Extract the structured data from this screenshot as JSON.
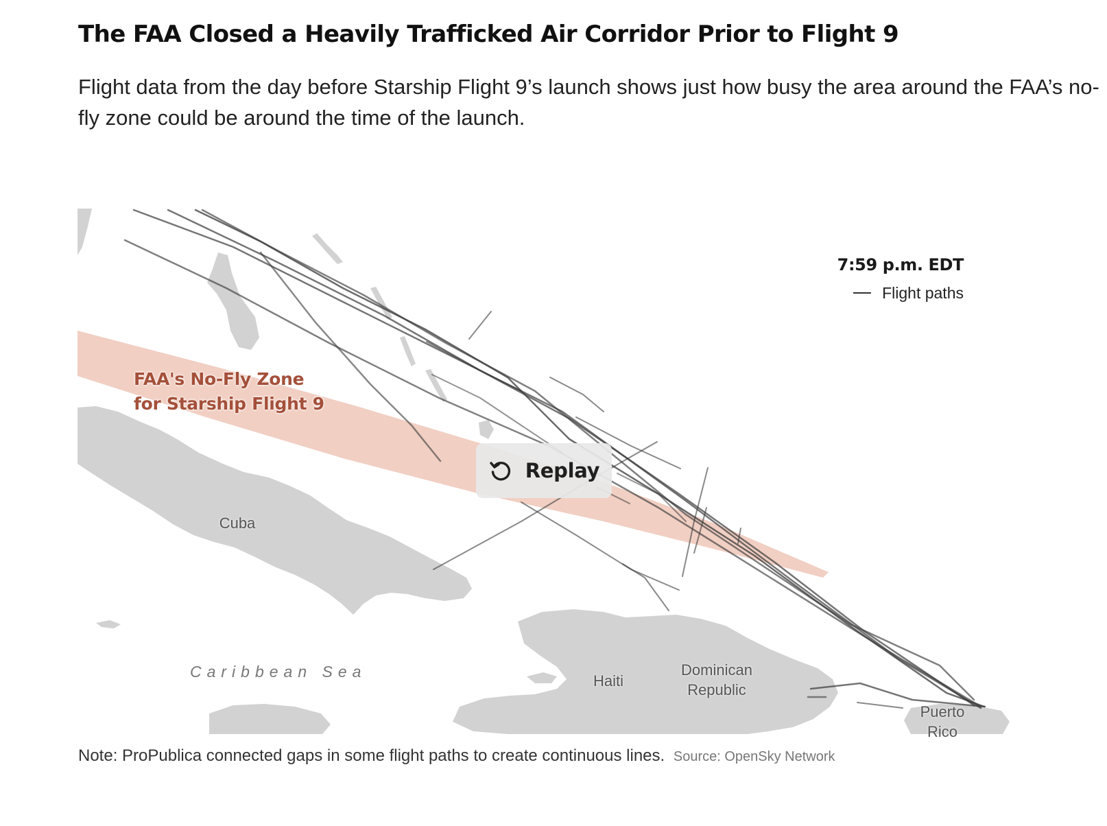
{
  "header": {
    "title": "The FAA Closed a Heavily Trafficked Air Corridor Prior to Flight 9",
    "description": "Flight data from the day before Starship Flight 9’s launch shows just how busy the area around the FAA’s no-fly zone could be around the time of the launch."
  },
  "legend": {
    "time": "7:59 p.m. EDT",
    "item_label": "Flight paths"
  },
  "map": {
    "zone_label_line1": "FAA's No-Fly Zone",
    "zone_label_line2": "for Starship Flight 9",
    "places": {
      "cuba": "Cuba",
      "haiti": "Haiti",
      "dominican_line1": "Dominican",
      "dominican_line2": "Republic",
      "puerto_line1": "Puerto",
      "puerto_line2": "Rico",
      "sea": "Caribbean Sea"
    },
    "colors": {
      "land": "#d2d2d2",
      "no_fly_zone": "#f0cabd",
      "zone_label": "#a4503a",
      "flight_path": "#3a3a3a"
    }
  },
  "controls": {
    "replay_label": "Replay",
    "replay_icon": "replay-icon"
  },
  "footer": {
    "note": "Note: ProPublica connected gaps in some flight paths to create continuous lines.",
    "source": "Source: OpenSky Network"
  }
}
